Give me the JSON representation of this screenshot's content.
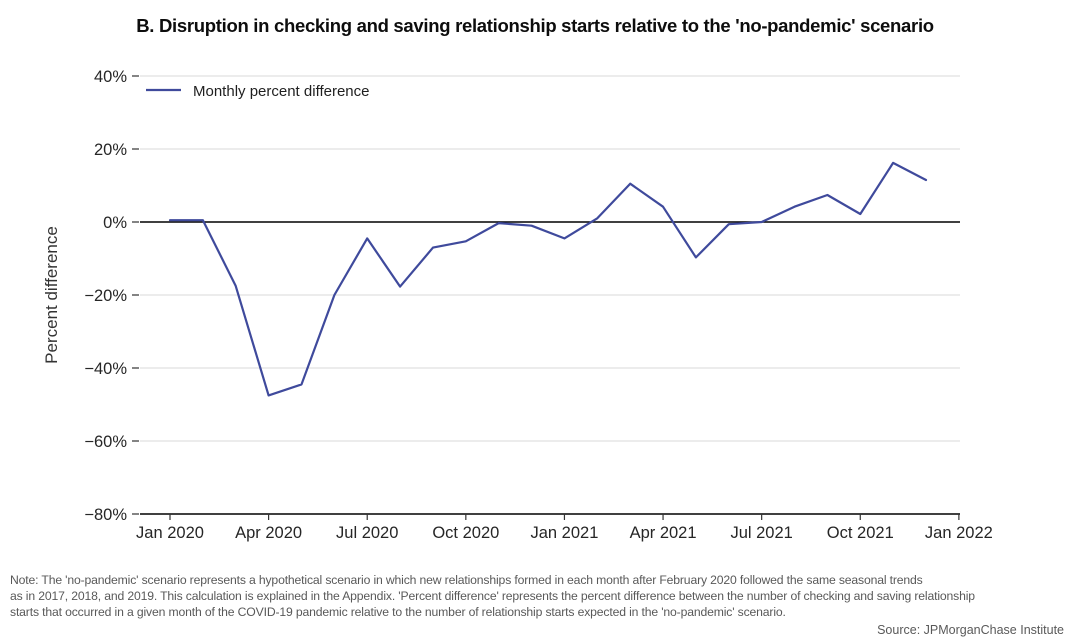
{
  "title": "B. Disruption in checking and saving relationship starts relative to the 'no-pandemic' scenario",
  "legend": {
    "label": "Monthly percent difference"
  },
  "y_axis": {
    "title": "Percent difference",
    "ticks": [
      {
        "label": "40%",
        "value": 40
      },
      {
        "label": "20%",
        "value": 20
      },
      {
        "label": "0%",
        "value": 0
      },
      {
        "label": "−20%",
        "value": -20
      },
      {
        "label": "−40%",
        "value": -40
      },
      {
        "label": "−60%",
        "value": -60
      },
      {
        "label": "−80%",
        "value": -80
      }
    ]
  },
  "x_axis": {
    "ticks": [
      {
        "label": "Jan 2020",
        "month_index": 0
      },
      {
        "label": "Apr 2020",
        "month_index": 3
      },
      {
        "label": "Jul 2020",
        "month_index": 6
      },
      {
        "label": "Oct 2020",
        "month_index": 9
      },
      {
        "label": "Jan 2021",
        "month_index": 12
      },
      {
        "label": "Apr 2021",
        "month_index": 15
      },
      {
        "label": "Jul 2021",
        "month_index": 18
      },
      {
        "label": "Oct 2021",
        "month_index": 21
      },
      {
        "label": "Jan 2022",
        "month_index": 24
      }
    ]
  },
  "note": {
    "lines": [
      "Note: The 'no-pandemic' scenario represents a hypothetical scenario in which new relationships formed in each month after February 2020 followed the same seasonal trends",
      "as in 2017, 2018, and 2019. This calculation is explained in the Appendix. 'Percent difference' represents the percent difference between the number of checking and saving relationship",
      "starts that occurred in a given month of the COVID-19 pandemic relative to the number of relationship starts expected in the 'no-pandemic' scenario."
    ]
  },
  "source": "Source: JPMorganChase Institute",
  "colors": {
    "line": "#3f4a9c",
    "grid": "#d9d9d9",
    "axis": "#000000",
    "tick_label": "#262626",
    "tick_mark": "#333333",
    "axis_title": "#333333",
    "note": "#595959"
  },
  "chart_data": {
    "type": "line",
    "title": "B. Disruption in checking and saving relationship starts relative to the 'no-pandemic' scenario",
    "xlabel": "",
    "ylabel": "Percent difference",
    "ylim": [
      -80,
      40
    ],
    "yticks_percent": [
      40,
      20,
      0,
      -20,
      -40,
      -60,
      -80
    ],
    "x_tick_labels_shown": [
      "Jan 2020",
      "Apr 2020",
      "Jul 2020",
      "Oct 2020",
      "Jan 2021",
      "Apr 2021",
      "Jul 2021",
      "Oct 2021",
      "Jan 2022"
    ],
    "grid": "horizontal",
    "zero_line": true,
    "legend_position": "top-left",
    "x": [
      "Jan 2020",
      "Feb 2020",
      "Mar 2020",
      "Apr 2020",
      "May 2020",
      "Jun 2020",
      "Jul 2020",
      "Aug 2020",
      "Sep 2020",
      "Oct 2020",
      "Nov 2020",
      "Dec 2020",
      "Jan 2021",
      "Feb 2021",
      "Mar 2021",
      "Apr 2021",
      "May 2021",
      "Jun 2021",
      "Jul 2021",
      "Aug 2021",
      "Sep 2021",
      "Oct 2021",
      "Nov 2021",
      "Dec 2021"
    ],
    "series": [
      {
        "name": "Monthly percent difference",
        "values": [
          0.5,
          0.5,
          -17.5,
          -47.5,
          -44.5,
          -20,
          -4.5,
          -17.7,
          -7,
          -5.3,
          -0.3,
          -1,
          -4.5,
          1,
          10.5,
          4.2,
          -9.7,
          -0.6,
          0,
          4.2,
          7.4,
          2.2,
          16.2,
          11.5
        ]
      }
    ]
  }
}
